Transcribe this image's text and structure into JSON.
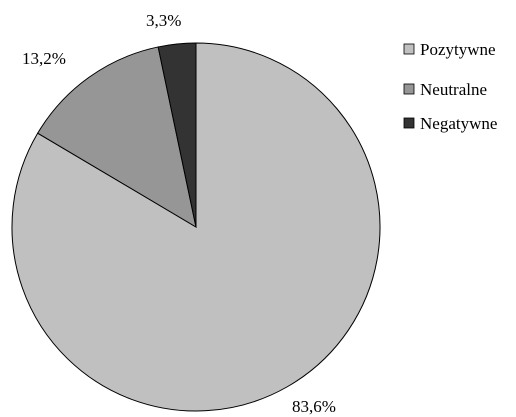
{
  "chart_data": {
    "type": "pie",
    "categories": [
      "Pozytywne",
      "Neutralne",
      "Negatywne"
    ],
    "values": [
      83.6,
      13.2,
      3.3
    ],
    "labels": [
      "83,6%",
      "13,2%",
      "3,3%"
    ],
    "colors": [
      "#c0c0c0",
      "#969696",
      "#333333"
    ],
    "start_angle_deg": 0,
    "direction": "clockwise",
    "legend": "right"
  }
}
